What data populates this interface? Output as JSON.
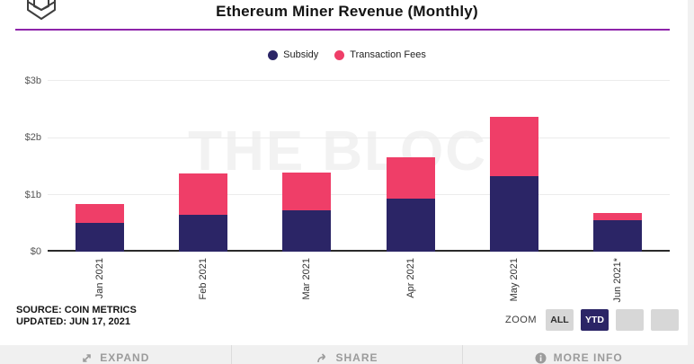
{
  "header": {
    "title": "Ethereum Miner Revenue (Monthly)",
    "logo": "the-block-cube-logo"
  },
  "legend": [
    {
      "label": "Subsidy",
      "color": "#2b2566"
    },
    {
      "label": "Transaction Fees",
      "color": "#ef3e68"
    }
  ],
  "chart_data": {
    "type": "bar",
    "stacked": true,
    "title": "Ethereum Miner Revenue (Monthly)",
    "categories": [
      "Jan 2021",
      "Feb 2021",
      "Mar 2021",
      "Apr 2021",
      "May 2021",
      "Jun 2021*"
    ],
    "series": [
      {
        "name": "Subsidy",
        "color": "#2b2566",
        "values": [
          0.5,
          0.65,
          0.72,
          0.93,
          1.32,
          0.55
        ]
      },
      {
        "name": "Transaction Fees",
        "color": "#ef3e68",
        "values": [
          0.33,
          0.72,
          0.66,
          0.72,
          1.03,
          0.12
        ]
      }
    ],
    "unit": "billion USD",
    "ylim": [
      0,
      3
    ],
    "yticks": [
      "$0",
      "$1b",
      "$2b",
      "$3b"
    ],
    "grid": true,
    "legend_position": "top",
    "watermark": "THE BLOCK"
  },
  "source": {
    "line1": "SOURCE: COIN METRICS",
    "line2": "UPDATED: JUN 17, 2021"
  },
  "zoom_controls": {
    "label": "ZOOM",
    "buttons": [
      {
        "label": "ALL",
        "active": false
      },
      {
        "label": "YTD",
        "active": true
      },
      {
        "label": "",
        "active": false
      },
      {
        "label": "",
        "active": false
      }
    ]
  },
  "footer": {
    "items": [
      {
        "icon": "expand-icon",
        "label": "EXPAND"
      },
      {
        "icon": "share-icon",
        "label": "SHARE"
      },
      {
        "icon": "info-icon",
        "label": "MORE INFO"
      }
    ]
  },
  "colors": {
    "subsidy": "#2b2566",
    "transaction_fees": "#ef3e68",
    "accent_line": "#8e24aa",
    "active_button": "#2b2566",
    "footer_bg": "#f0f0f0",
    "watermark": "#f2f2f2"
  }
}
